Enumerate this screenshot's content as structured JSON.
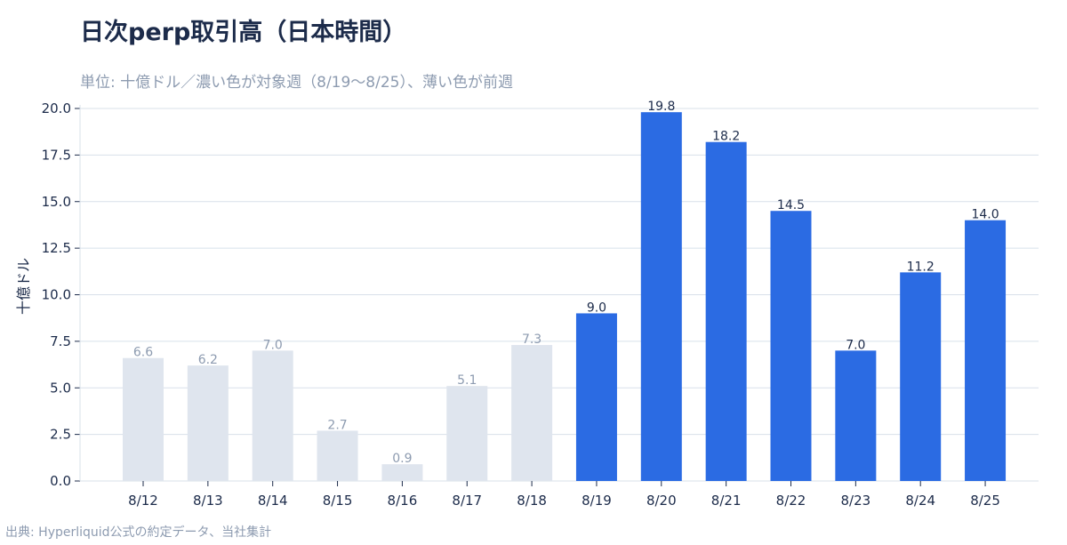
{
  "title": "日次perp取引高（日本時間）",
  "subtitle": "単位: 十億ドル／濃い色が対象週（8/19〜8/25）、薄い色が前週",
  "source": "出典: Hyperliquid公式の約定データ、当社集計",
  "colors": {
    "current_week": "#2b6be3",
    "previous_week": "#dfe5ee",
    "current_label": "#1c2b4a",
    "previous_label": "#8d9bb0",
    "grid": "#d8e0ea"
  },
  "chart_data": {
    "type": "bar",
    "ylabel": "十億ドル",
    "ylim": [
      0,
      20
    ],
    "yticks": [
      "0.0",
      "2.5",
      "5.0",
      "7.5",
      "10.0",
      "12.5",
      "15.0",
      "17.5",
      "20.0"
    ],
    "grid": "horizontal",
    "categories": [
      "8/12",
      "8/13",
      "8/14",
      "8/15",
      "8/16",
      "8/17",
      "8/18",
      "8/19",
      "8/20",
      "8/21",
      "8/22",
      "8/23",
      "8/24",
      "8/25"
    ],
    "series": [
      {
        "name": "前週",
        "values": [
          6.6,
          6.2,
          7.0,
          2.7,
          0.9,
          5.1,
          7.3,
          null,
          null,
          null,
          null,
          null,
          null,
          null
        ]
      },
      {
        "name": "対象週",
        "values": [
          null,
          null,
          null,
          null,
          null,
          null,
          null,
          9.0,
          19.8,
          18.2,
          14.5,
          7.0,
          11.2,
          14.0
        ]
      }
    ],
    "data_labels": [
      "6.6",
      "6.2",
      "7.0",
      "2.7",
      "0.9",
      "5.1",
      "7.3",
      "9.0",
      "19.8",
      "18.2",
      "14.5",
      "7.0",
      "11.2",
      "14.0"
    ]
  }
}
